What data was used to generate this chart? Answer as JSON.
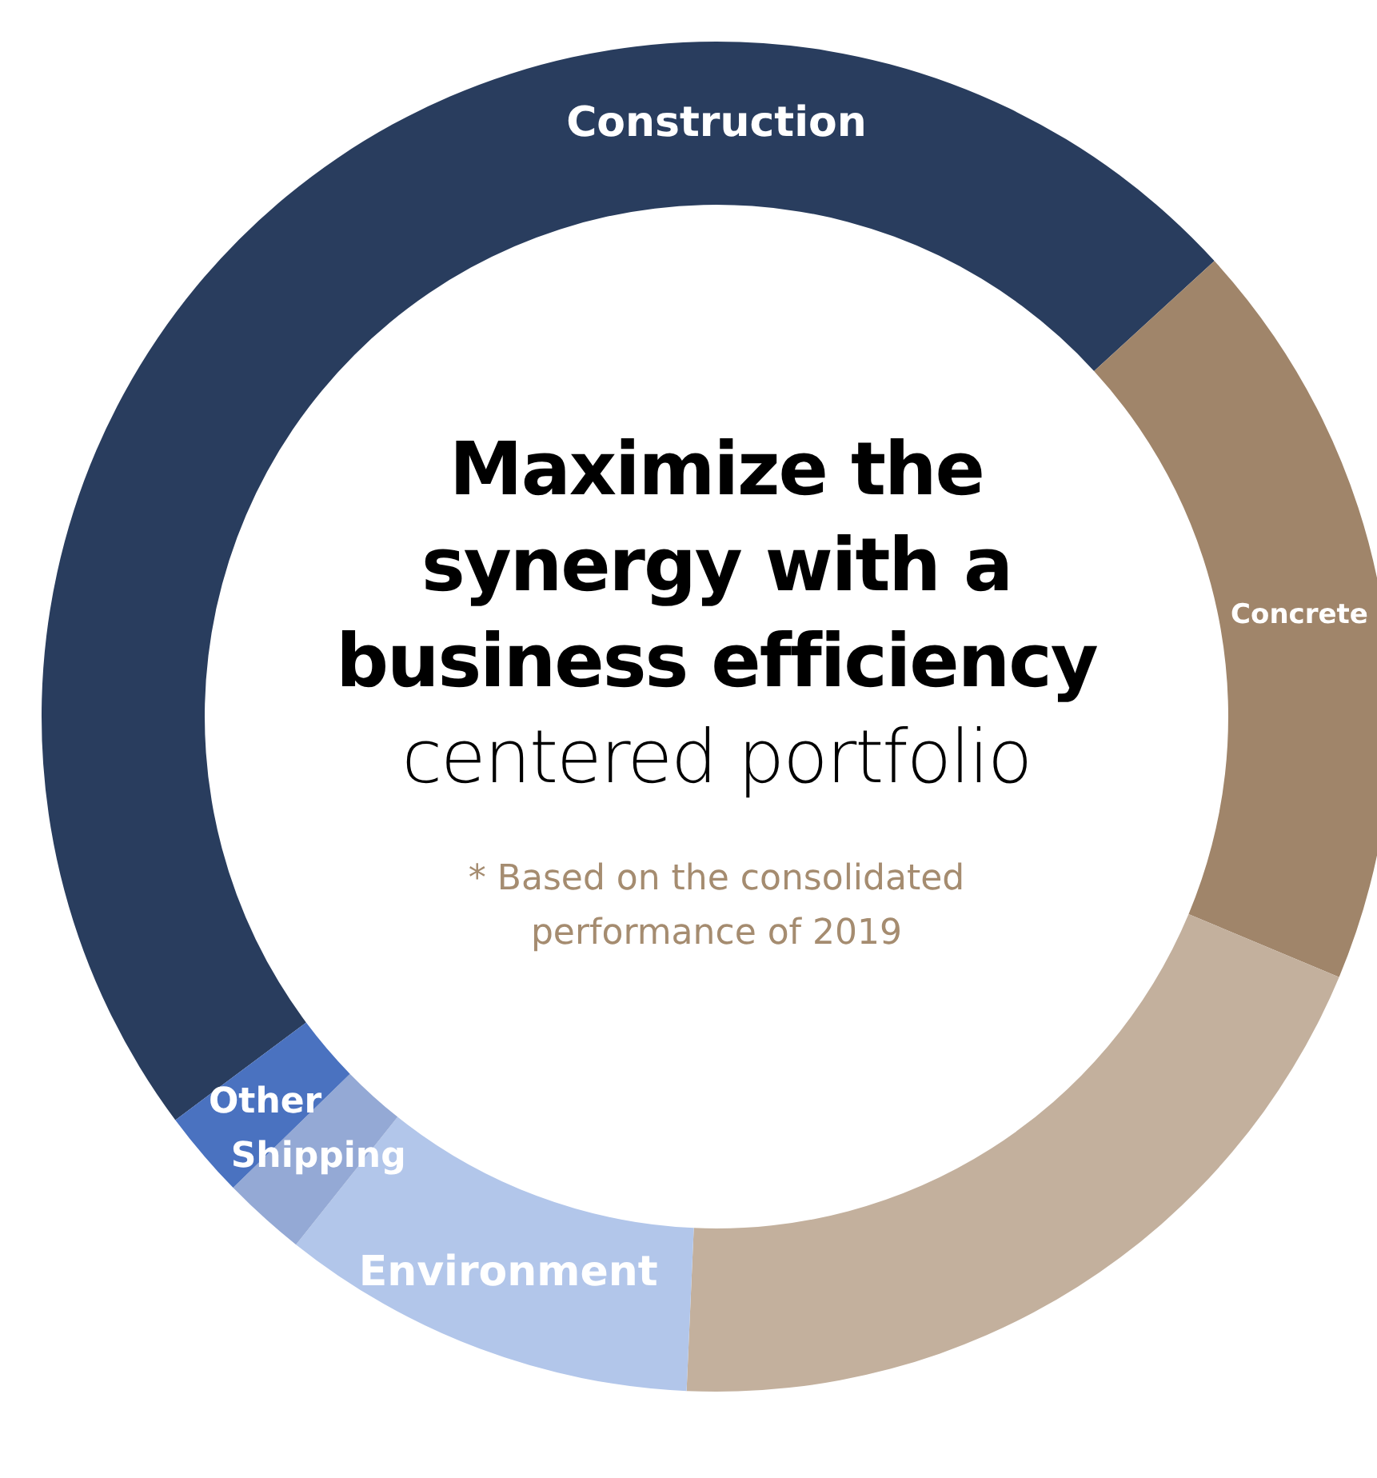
{
  "chart_data": {
    "type": "donut",
    "title": "Maximize the synergy with a business efficiency",
    "subtitle": "centered portfolio",
    "annotations": [
      "* Based on the consolidated performance of 2019"
    ],
    "categories": [
      "Construction",
      "Concrete",
      null,
      "Environment",
      "Shipping",
      "Other"
    ],
    "values": [
      48.4,
      18.1,
      19.4,
      10.0,
      2.0,
      2.1
    ],
    "colors": [
      "#293d5e",
      "#a0856a",
      "#c3b09d",
      "#b2c6ea",
      "#94a9d5",
      "#4a72c0"
    ],
    "legend": false
  }
}
